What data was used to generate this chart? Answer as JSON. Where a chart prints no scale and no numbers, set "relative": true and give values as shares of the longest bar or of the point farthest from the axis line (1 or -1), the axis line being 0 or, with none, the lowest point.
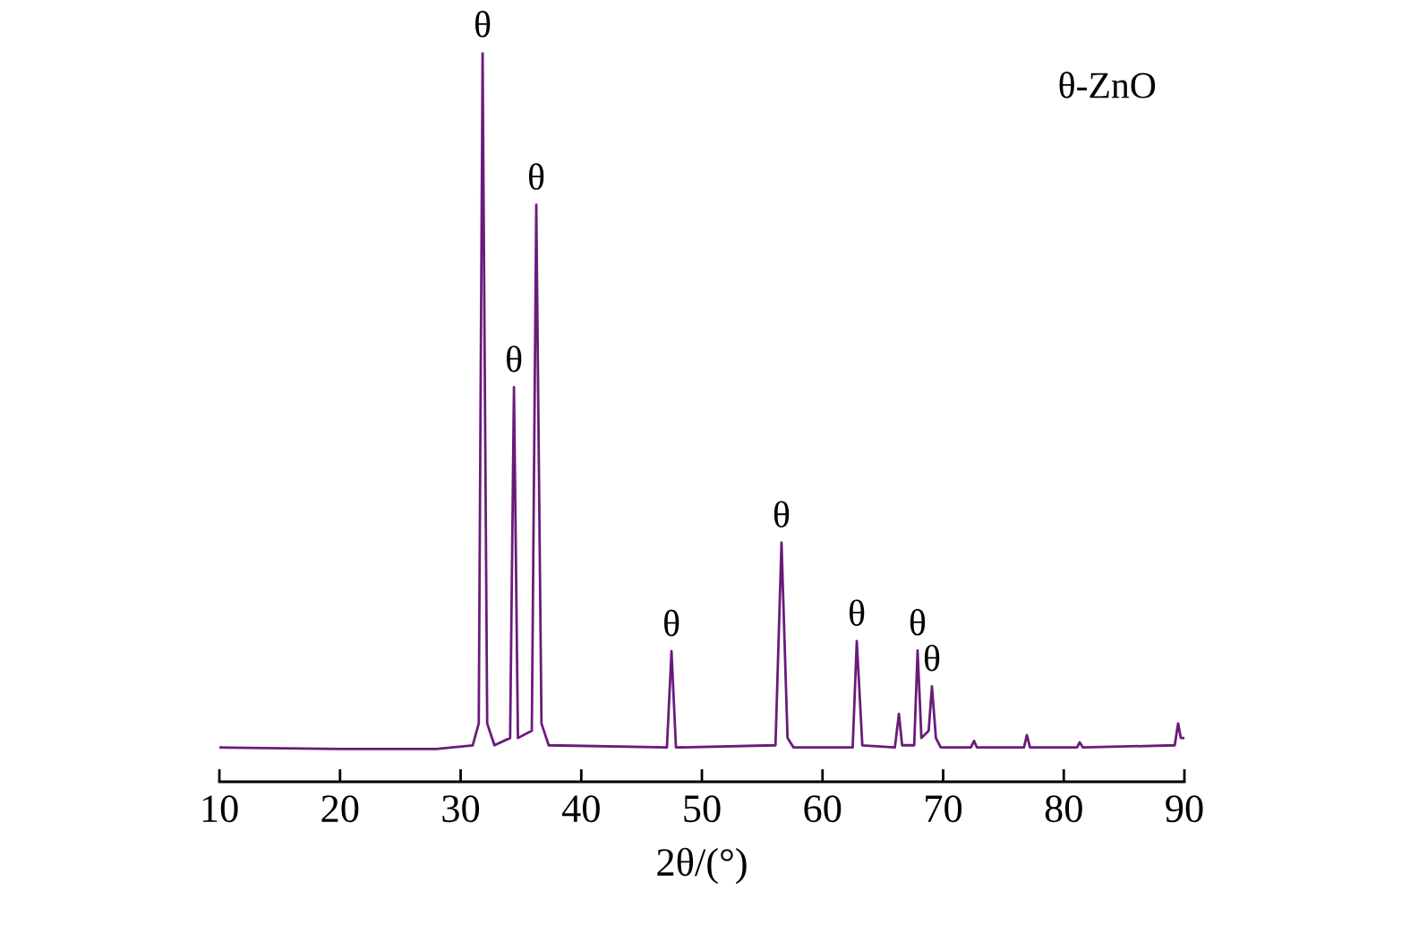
{
  "chart_data": {
    "type": "line",
    "relative": true,
    "xlabel": "2θ/(°)",
    "color": "#6a1b7a",
    "xlim": [
      10,
      90
    ],
    "xticks": [
      10,
      20,
      30,
      40,
      50,
      60,
      70,
      80,
      90
    ],
    "grid": false,
    "marker": "none",
    "line_style": "solid",
    "x": [
      10,
      20,
      28,
      31.0,
      31.5,
      31.82,
      32.2,
      32.8,
      34.1,
      34.42,
      34.75,
      35.9,
      36.27,
      36.7,
      37.3,
      47.1,
      47.48,
      47.85,
      56.1,
      56.6,
      57.1,
      57.6,
      62.5,
      62.84,
      63.3,
      66.0,
      66.33,
      66.6,
      67.6,
      67.88,
      68.2,
      68.8,
      69.07,
      69.4,
      69.8,
      72.3,
      72.56,
      72.8,
      76.7,
      76.94,
      77.2,
      81.1,
      81.32,
      81.6,
      89.2,
      89.48,
      89.7,
      90
    ],
    "values": [
      0.047,
      0.045,
      0.045,
      0.05,
      0.08,
      1.0,
      0.08,
      0.05,
      0.06,
      0.541,
      0.06,
      0.07,
      0.791,
      0.08,
      0.05,
      0.047,
      0.179,
      0.047,
      0.05,
      0.328,
      0.06,
      0.047,
      0.047,
      0.193,
      0.05,
      0.047,
      0.093,
      0.05,
      0.05,
      0.18,
      0.06,
      0.07,
      0.131,
      0.06,
      0.047,
      0.047,
      0.056,
      0.047,
      0.047,
      0.064,
      0.047,
      0.047,
      0.054,
      0.047,
      0.05,
      0.08,
      0.06,
      0.06
    ],
    "annotations": [
      {
        "text": "θ",
        "x": 31.82,
        "y": 1.0
      },
      {
        "text": "θ",
        "x": 34.42,
        "y": 0.541
      },
      {
        "text": "θ",
        "x": 36.27,
        "y": 0.791
      },
      {
        "text": "θ",
        "x": 47.48,
        "y": 0.179
      },
      {
        "text": "θ",
        "x": 56.6,
        "y": 0.328
      },
      {
        "text": "θ",
        "x": 62.84,
        "y": 0.193
      },
      {
        "text": "θ",
        "x": 67.88,
        "y": 0.18
      },
      {
        "text": "θ",
        "x": 69.07,
        "y": 0.131
      },
      "θ-ZnO"
    ]
  }
}
